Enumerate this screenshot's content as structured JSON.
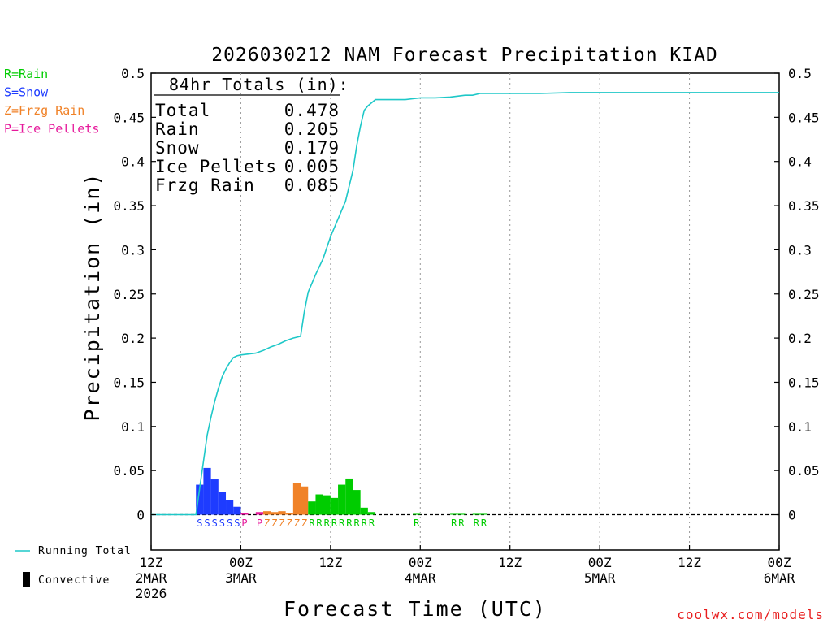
{
  "chart_data": {
    "type": "bar",
    "title": "2026030212 NAM Forecast Precipitation KIAD",
    "xlabel": "Forecast Time (UTC)",
    "ylabel": "Precipitation (in)",
    "ylim": [
      -0.04,
      0.5
    ],
    "xlim_hours": [
      0,
      84
    ],
    "yticks": [
      "0.5",
      "0.45",
      "0.4",
      "0.35",
      "0.3",
      "0.25",
      "0.2",
      "0.15",
      "0.1",
      "0.05",
      "0"
    ],
    "ytick_values": [
      0.5,
      0.45,
      0.4,
      0.35,
      0.3,
      0.25,
      0.2,
      0.15,
      0.1,
      0.05,
      0
    ],
    "xticks": [
      {
        "hour": 0,
        "lines": [
          "12Z",
          "2MAR",
          "2026"
        ]
      },
      {
        "hour": 12,
        "lines": [
          "00Z",
          "3MAR"
        ]
      },
      {
        "hour": 24,
        "lines": [
          "12Z"
        ]
      },
      {
        "hour": 36,
        "lines": [
          "00Z",
          "4MAR"
        ]
      },
      {
        "hour": 48,
        "lines": [
          "12Z"
        ]
      },
      {
        "hour": 60,
        "lines": [
          "00Z",
          "5MAR"
        ]
      },
      {
        "hour": 72,
        "lines": [
          "12Z"
        ]
      },
      {
        "hour": 84,
        "lines": [
          "00Z",
          "6MAR"
        ]
      }
    ],
    "type_legend": [
      {
        "label": "R=Rain",
        "color": "#00cc00"
      },
      {
        "label": "S=Snow",
        "color": "#1e3cff"
      },
      {
        "label": "Z=Frzg Rain",
        "color": "#f08228"
      },
      {
        "label": "P=Ice Pellets",
        "color": "#e6199b"
      }
    ],
    "series_legend": [
      {
        "label": "Running Total",
        "color": "#1ec8c8"
      },
      {
        "label": "Convective",
        "color": "#000000"
      }
    ],
    "totals_header": "84hr Totals (in):",
    "totals": [
      {
        "label": "Total",
        "value": "0.478"
      },
      {
        "label": "Rain",
        "value": "0.205"
      },
      {
        "label": "Snow",
        "value": "0.179"
      },
      {
        "label": "Ice Pellets",
        "value": "0.005"
      },
      {
        "label": "Frzg Rain",
        "value": "0.085"
      }
    ],
    "type_colors": {
      "S": "#1e3cff",
      "P": "#e6199b",
      "Z": "#f08228",
      "R": "#00cc00"
    },
    "bars": [
      {
        "hour": 7,
        "value": 0.034,
        "ptype": "S"
      },
      {
        "hour": 8,
        "value": 0.053,
        "ptype": "S"
      },
      {
        "hour": 9,
        "value": 0.04,
        "ptype": "S"
      },
      {
        "hour": 10,
        "value": 0.026,
        "ptype": "S"
      },
      {
        "hour": 11,
        "value": 0.017,
        "ptype": "S"
      },
      {
        "hour": 12,
        "value": 0.009,
        "ptype": "S"
      },
      {
        "hour": 13,
        "value": 0.002,
        "ptype": "P"
      },
      {
        "hour": 15,
        "value": 0.003,
        "ptype": "P"
      },
      {
        "hour": 16,
        "value": 0.004,
        "ptype": "Z"
      },
      {
        "hour": 17,
        "value": 0.003,
        "ptype": "Z"
      },
      {
        "hour": 18,
        "value": 0.004,
        "ptype": "Z"
      },
      {
        "hour": 19,
        "value": 0.002,
        "ptype": "Z"
      },
      {
        "hour": 20,
        "value": 0.036,
        "ptype": "Z"
      },
      {
        "hour": 21,
        "value": 0.032,
        "ptype": "Z"
      },
      {
        "hour": 22,
        "value": 0.015,
        "ptype": "R"
      },
      {
        "hour": 23,
        "value": 0.023,
        "ptype": "R"
      },
      {
        "hour": 24,
        "value": 0.022,
        "ptype": "R"
      },
      {
        "hour": 25,
        "value": 0.019,
        "ptype": "R"
      },
      {
        "hour": 26,
        "value": 0.034,
        "ptype": "R"
      },
      {
        "hour": 27,
        "value": 0.041,
        "ptype": "R"
      },
      {
        "hour": 28,
        "value": 0.028,
        "ptype": "R"
      },
      {
        "hour": 29,
        "value": 0.008,
        "ptype": "R"
      },
      {
        "hour": 30,
        "value": 0.003,
        "ptype": "R"
      },
      {
        "hour": 36,
        "value": 0.001,
        "ptype": "R"
      },
      {
        "hour": 41,
        "value": 0.001,
        "ptype": "R"
      },
      {
        "hour": 42,
        "value": 0.001,
        "ptype": "R"
      },
      {
        "hour": 44,
        "value": 0.001,
        "ptype": "R"
      },
      {
        "hour": 45,
        "value": 0.001,
        "ptype": "R"
      }
    ],
    "ptype_labels": [
      {
        "hour": 7,
        "text": "S"
      },
      {
        "hour": 8,
        "text": "S"
      },
      {
        "hour": 9,
        "text": "S"
      },
      {
        "hour": 10,
        "text": "S"
      },
      {
        "hour": 11,
        "text": "S"
      },
      {
        "hour": 12,
        "text": "S"
      },
      {
        "hour": 13,
        "text": "P"
      },
      {
        "hour": 15,
        "text": "P"
      },
      {
        "hour": 16,
        "text": "Z"
      },
      {
        "hour": 17,
        "text": "Z"
      },
      {
        "hour": 18,
        "text": "Z"
      },
      {
        "hour": 19,
        "text": "Z"
      },
      {
        "hour": 20,
        "text": "Z"
      },
      {
        "hour": 21,
        "text": "Z"
      },
      {
        "hour": 22,
        "text": "R"
      },
      {
        "hour": 23,
        "text": "R"
      },
      {
        "hour": 24,
        "text": "R"
      },
      {
        "hour": 25,
        "text": "R"
      },
      {
        "hour": 26,
        "text": "R"
      },
      {
        "hour": 27,
        "text": "R"
      },
      {
        "hour": 28,
        "text": "R"
      },
      {
        "hour": 29,
        "text": "R"
      },
      {
        "hour": 30,
        "text": "R"
      },
      {
        "hour": 36,
        "text": "R"
      },
      {
        "hour": 41,
        "text": "R"
      },
      {
        "hour": 42,
        "text": "R"
      },
      {
        "hour": 44,
        "text": "R"
      },
      {
        "hour": 45,
        "text": "R"
      }
    ],
    "running_total": {
      "hours": [
        0,
        6,
        6.5,
        7,
        7.5,
        8,
        8.5,
        9,
        9.5,
        10,
        10.5,
        11,
        11.5,
        12,
        13,
        14,
        15,
        16,
        17,
        18,
        19,
        20,
        20.5,
        21,
        22,
        23,
        24,
        25,
        26,
        27,
        27.5,
        28,
        28.5,
        29,
        30,
        32,
        34,
        35,
        36,
        38,
        40,
        41,
        42,
        43,
        44,
        48,
        52,
        56,
        60,
        64,
        70,
        76,
        84
      ],
      "values": [
        0,
        0,
        0.03,
        0.06,
        0.09,
        0.11,
        0.128,
        0.143,
        0.156,
        0.165,
        0.172,
        0.178,
        0.18,
        0.181,
        0.182,
        0.183,
        0.186,
        0.19,
        0.193,
        0.197,
        0.2,
        0.202,
        0.23,
        0.252,
        0.272,
        0.29,
        0.315,
        0.335,
        0.355,
        0.39,
        0.418,
        0.44,
        0.458,
        0.463,
        0.47,
        0.47,
        0.47,
        0.471,
        0.472,
        0.472,
        0.473,
        0.474,
        0.475,
        0.475,
        0.477,
        0.477,
        0.477,
        0.478,
        0.478,
        0.478,
        0.478,
        0.478,
        0.478
      ]
    },
    "credit": "coolwx.com/models"
  }
}
